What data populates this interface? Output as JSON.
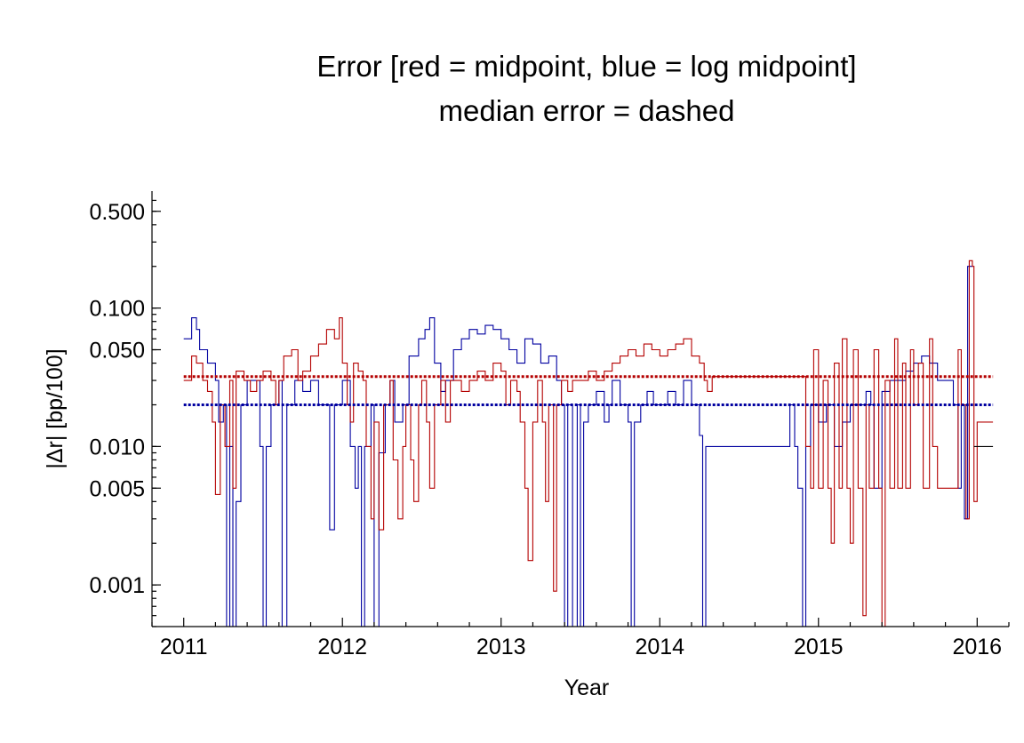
{
  "chart_data": {
    "type": "line",
    "title": "Error [red = midpoint, blue = log midpoint]",
    "subtitle": "median error = dashed",
    "xlabel": "Year",
    "ylabel": "|Δr|  [bp/100]",
    "xlim": [
      2010.8,
      2016.2
    ],
    "ylim": [
      0.0005,
      0.7
    ],
    "y_scale": "log",
    "grid": false,
    "x_ticks": [
      "2011",
      "2012",
      "2013",
      "2014",
      "2015",
      "2016"
    ],
    "y_ticks": [
      "0.001",
      "0.005",
      "0.010",
      "0.050",
      "0.100",
      "0.500"
    ],
    "y_tick_values": [
      0.001,
      0.005,
      0.01,
      0.05,
      0.1,
      0.5
    ],
    "colors": {
      "midpoint": "#b40000",
      "log_midpoint": "#0000a0",
      "tail": "#000000"
    },
    "median": {
      "midpoint": 0.032,
      "log_midpoint": 0.02
    },
    "series": [
      {
        "key": "log_midpoint",
        "points": [
          [
            2011.0,
            0.06
          ],
          [
            2011.05,
            0.06
          ],
          [
            2011.05,
            0.085
          ],
          [
            2011.08,
            0.07
          ],
          [
            2011.1,
            0.05
          ],
          [
            2011.15,
            0.04
          ],
          [
            2011.2,
            0.03
          ],
          [
            2011.22,
            0.015
          ],
          [
            2011.25,
            0.02
          ],
          [
            2011.27,
            0.0005
          ],
          [
            2011.29,
            0.01
          ],
          [
            2011.31,
            0.0005
          ],
          [
            2011.33,
            0.004
          ],
          [
            2011.36,
            0.02
          ],
          [
            2011.4,
            0.03
          ],
          [
            2011.45,
            0.03
          ],
          [
            2011.48,
            0.01
          ],
          [
            2011.5,
            0.0005
          ],
          [
            2011.52,
            0.01
          ],
          [
            2011.55,
            0.02
          ],
          [
            2011.6,
            0.03
          ],
          [
            2011.62,
            0.0005
          ],
          [
            2011.65,
            0.02
          ],
          [
            2011.7,
            0.03
          ],
          [
            2011.75,
            0.025
          ],
          [
            2011.8,
            0.03
          ],
          [
            2011.85,
            0.02
          ],
          [
            2011.9,
            0.02
          ],
          [
            2011.92,
            0.0025
          ],
          [
            2011.95,
            0.02
          ],
          [
            2012.0,
            0.03
          ],
          [
            2012.05,
            0.01
          ],
          [
            2012.08,
            0.005
          ],
          [
            2012.1,
            0.01
          ],
          [
            2012.12,
            0.0005
          ],
          [
            2012.14,
            0.01
          ],
          [
            2012.18,
            0.02
          ],
          [
            2012.2,
            0.0005
          ],
          [
            2012.23,
            0.009
          ],
          [
            2012.27,
            0.02
          ],
          [
            2012.3,
            0.03
          ],
          [
            2012.33,
            0.015
          ],
          [
            2012.38,
            0.02
          ],
          [
            2012.42,
            0.045
          ],
          [
            2012.48,
            0.06
          ],
          [
            2012.52,
            0.07
          ],
          [
            2012.55,
            0.085
          ],
          [
            2012.58,
            0.04
          ],
          [
            2012.62,
            0.025
          ],
          [
            2012.65,
            0.03
          ],
          [
            2012.7,
            0.05
          ],
          [
            2012.75,
            0.06
          ],
          [
            2012.8,
            0.07
          ],
          [
            2012.85,
            0.065
          ],
          [
            2012.9,
            0.075
          ],
          [
            2012.95,
            0.07
          ],
          [
            2013.0,
            0.06
          ],
          [
            2013.05,
            0.05
          ],
          [
            2013.1,
            0.04
          ],
          [
            2013.15,
            0.06
          ],
          [
            2013.2,
            0.055
          ],
          [
            2013.25,
            0.04
          ],
          [
            2013.3,
            0.045
          ],
          [
            2013.35,
            0.03
          ],
          [
            2013.38,
            0.02
          ],
          [
            2013.4,
            0.0005
          ],
          [
            2013.42,
            0.02
          ],
          [
            2013.45,
            0.0005
          ],
          [
            2013.48,
            0.02
          ],
          [
            2013.5,
            0.0005
          ],
          [
            2013.52,
            0.015
          ],
          [
            2013.55,
            0.02
          ],
          [
            2013.6,
            0.025
          ],
          [
            2013.65,
            0.015
          ],
          [
            2013.68,
            0.02
          ],
          [
            2013.7,
            0.03
          ],
          [
            2013.75,
            0.02
          ],
          [
            2013.8,
            0.015
          ],
          [
            2013.82,
            0.0005
          ],
          [
            2013.84,
            0.015
          ],
          [
            2013.88,
            0.02
          ],
          [
            2013.92,
            0.025
          ],
          [
            2013.96,
            0.02
          ],
          [
            2014.0,
            0.02
          ],
          [
            2014.05,
            0.025
          ],
          [
            2014.1,
            0.02
          ],
          [
            2014.15,
            0.03
          ],
          [
            2014.2,
            0.02
          ],
          [
            2014.25,
            0.012
          ],
          [
            2014.27,
            0.0005
          ],
          [
            2014.29,
            0.01
          ],
          [
            2014.5,
            0.01
          ],
          [
            2014.75,
            0.01
          ],
          [
            2014.8,
            0.01
          ],
          [
            2014.82,
            0.02
          ],
          [
            2014.85,
            0.01
          ],
          [
            2014.87,
            0.005
          ],
          [
            2014.9,
            0.0005
          ],
          [
            2014.92,
            0.01
          ],
          [
            2014.95,
            0.02
          ],
          [
            2015.0,
            0.015
          ],
          [
            2015.05,
            0.02
          ],
          [
            2015.1,
            0.01
          ],
          [
            2015.15,
            0.015
          ],
          [
            2015.2,
            0.02
          ],
          [
            2015.25,
            0.02
          ],
          [
            2015.3,
            0.025
          ],
          [
            2015.33,
            0.02
          ],
          [
            2015.35,
            0.005
          ],
          [
            2015.4,
            0.025
          ],
          [
            2015.45,
            0.03
          ],
          [
            2015.5,
            0.03
          ],
          [
            2015.55,
            0.035
          ],
          [
            2015.6,
            0.04
          ],
          [
            2015.65,
            0.045
          ],
          [
            2015.7,
            0.04
          ],
          [
            2015.75,
            0.03
          ],
          [
            2015.8,
            0.03
          ],
          [
            2015.85,
            0.02
          ],
          [
            2015.88,
            0.005
          ],
          [
            2015.9,
            0.02
          ],
          [
            2015.92,
            0.003
          ],
          [
            2015.94,
            0.2
          ],
          [
            2015.97,
            0.2
          ]
        ]
      },
      {
        "key": "midpoint",
        "points": [
          [
            2011.0,
            0.03
          ],
          [
            2011.05,
            0.045
          ],
          [
            2011.08,
            0.04
          ],
          [
            2011.12,
            0.03
          ],
          [
            2011.15,
            0.025
          ],
          [
            2011.18,
            0.015
          ],
          [
            2011.2,
            0.0045
          ],
          [
            2011.23,
            0.02
          ],
          [
            2011.26,
            0.01
          ],
          [
            2011.29,
            0.03
          ],
          [
            2011.31,
            0.005
          ],
          [
            2011.33,
            0.035
          ],
          [
            2011.38,
            0.03
          ],
          [
            2011.42,
            0.025
          ],
          [
            2011.46,
            0.03
          ],
          [
            2011.5,
            0.035
          ],
          [
            2011.55,
            0.03
          ],
          [
            2011.58,
            0.02
          ],
          [
            2011.6,
            0.03
          ],
          [
            2011.63,
            0.045
          ],
          [
            2011.68,
            0.05
          ],
          [
            2011.72,
            0.03
          ],
          [
            2011.75,
            0.035
          ],
          [
            2011.8,
            0.045
          ],
          [
            2011.85,
            0.055
          ],
          [
            2011.9,
            0.07
          ],
          [
            2011.95,
            0.06
          ],
          [
            2011.98,
            0.085
          ],
          [
            2012.0,
            0.04
          ],
          [
            2012.03,
            0.02
          ],
          [
            2012.05,
            0.015
          ],
          [
            2012.07,
            0.04
          ],
          [
            2012.1,
            0.035
          ],
          [
            2012.13,
            0.03
          ],
          [
            2012.15,
            0.01
          ],
          [
            2012.18,
            0.003
          ],
          [
            2012.2,
            0.015
          ],
          [
            2012.23,
            0.0025
          ],
          [
            2012.26,
            0.02
          ],
          [
            2012.3,
            0.03
          ],
          [
            2012.32,
            0.008
          ],
          [
            2012.35,
            0.003
          ],
          [
            2012.38,
            0.01
          ],
          [
            2012.4,
            0.02
          ],
          [
            2012.43,
            0.008
          ],
          [
            2012.45,
            0.004
          ],
          [
            2012.48,
            0.02
          ],
          [
            2012.5,
            0.03
          ],
          [
            2012.53,
            0.015
          ],
          [
            2012.55,
            0.005
          ],
          [
            2012.58,
            0.02
          ],
          [
            2012.62,
            0.03
          ],
          [
            2012.65,
            0.015
          ],
          [
            2012.68,
            0.03
          ],
          [
            2012.72,
            0.03
          ],
          [
            2012.75,
            0.025
          ],
          [
            2012.8,
            0.03
          ],
          [
            2012.85,
            0.035
          ],
          [
            2012.9,
            0.03
          ],
          [
            2012.95,
            0.04
          ],
          [
            2013.0,
            0.035
          ],
          [
            2013.03,
            0.02
          ],
          [
            2013.06,
            0.03
          ],
          [
            2013.1,
            0.025
          ],
          [
            2013.12,
            0.015
          ],
          [
            2013.15,
            0.005
          ],
          [
            2013.17,
            0.0015
          ],
          [
            2013.2,
            0.015
          ],
          [
            2013.23,
            0.03
          ],
          [
            2013.26,
            0.015
          ],
          [
            2013.28,
            0.004
          ],
          [
            2013.3,
            0.02
          ],
          [
            2013.33,
            0.0009
          ],
          [
            2013.35,
            0.02
          ],
          [
            2013.38,
            0.03
          ],
          [
            2013.42,
            0.025
          ],
          [
            2013.45,
            0.03
          ],
          [
            2013.5,
            0.03
          ],
          [
            2013.55,
            0.035
          ],
          [
            2013.6,
            0.03
          ],
          [
            2013.65,
            0.035
          ],
          [
            2013.7,
            0.04
          ],
          [
            2013.75,
            0.045
          ],
          [
            2013.8,
            0.05
          ],
          [
            2013.85,
            0.045
          ],
          [
            2013.9,
            0.055
          ],
          [
            2013.95,
            0.05
          ],
          [
            2014.0,
            0.045
          ],
          [
            2014.05,
            0.05
          ],
          [
            2014.1,
            0.055
          ],
          [
            2014.15,
            0.06
          ],
          [
            2014.2,
            0.045
          ],
          [
            2014.25,
            0.04
          ],
          [
            2014.28,
            0.03
          ],
          [
            2014.3,
            0.025
          ],
          [
            2014.33,
            0.032
          ],
          [
            2014.5,
            0.032
          ],
          [
            2014.8,
            0.032
          ],
          [
            2014.9,
            0.032
          ],
          [
            2014.92,
            0.01
          ],
          [
            2014.95,
            0.005
          ],
          [
            2014.97,
            0.05
          ],
          [
            2015.0,
            0.005
          ],
          [
            2015.03,
            0.03
          ],
          [
            2015.06,
            0.005
          ],
          [
            2015.08,
            0.002
          ],
          [
            2015.1,
            0.04
          ],
          [
            2015.13,
            0.005
          ],
          [
            2015.15,
            0.06
          ],
          [
            2015.18,
            0.005
          ],
          [
            2015.2,
            0.002
          ],
          [
            2015.22,
            0.05
          ],
          [
            2015.25,
            0.005
          ],
          [
            2015.28,
            0.0006
          ],
          [
            2015.3,
            0.02
          ],
          [
            2015.32,
            0.005
          ],
          [
            2015.35,
            0.05
          ],
          [
            2015.38,
            0.005
          ],
          [
            2015.4,
            0.0005
          ],
          [
            2015.42,
            0.03
          ],
          [
            2015.45,
            0.005
          ],
          [
            2015.48,
            0.06
          ],
          [
            2015.5,
            0.005
          ],
          [
            2015.53,
            0.04
          ],
          [
            2015.55,
            0.005
          ],
          [
            2015.58,
            0.05
          ],
          [
            2015.6,
            0.02
          ],
          [
            2015.63,
            0.04
          ],
          [
            2015.66,
            0.005
          ],
          [
            2015.7,
            0.06
          ],
          [
            2015.72,
            0.01
          ],
          [
            2015.75,
            0.005
          ],
          [
            2015.8,
            0.005
          ],
          [
            2015.85,
            0.005
          ],
          [
            2015.88,
            0.05
          ],
          [
            2015.9,
            0.02
          ],
          [
            2015.93,
            0.003
          ],
          [
            2015.95,
            0.22
          ],
          [
            2015.97,
            0.2
          ],
          [
            2015.98,
            0.004
          ],
          [
            2016.0,
            0.015
          ],
          [
            2016.1,
            0.015
          ]
        ]
      },
      {
        "key": "tail",
        "points": [
          [
            2015.98,
            0.01
          ],
          [
            2016.1,
            0.01
          ]
        ]
      }
    ]
  }
}
